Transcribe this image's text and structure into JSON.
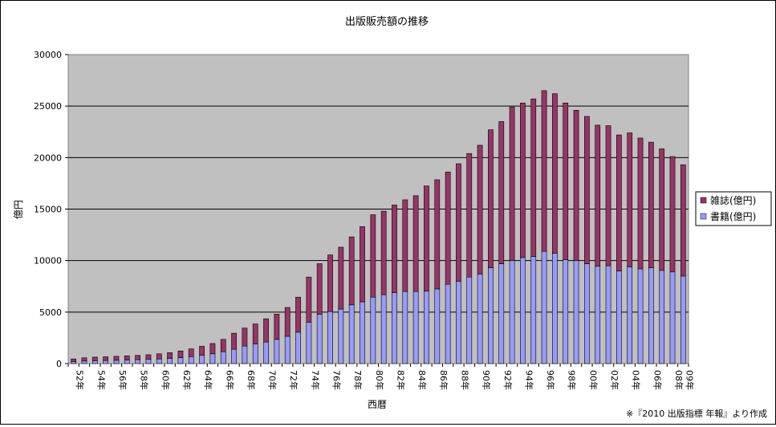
{
  "chart_data": {
    "type": "bar",
    "stacked": true,
    "title": "出版販売額の推移",
    "xlabel": "西暦",
    "ylabel": "億円",
    "ylim": [
      0,
      30000
    ],
    "yticks": [
      0,
      5000,
      10000,
      15000,
      20000,
      25000,
      30000
    ],
    "grid": true,
    "legend_position": "right",
    "categories": [
      "52年",
      "53年",
      "54年",
      "55年",
      "56年",
      "57年",
      "58年",
      "59年",
      "60年",
      "61年",
      "62年",
      "63年",
      "64年",
      "65年",
      "66年",
      "67年",
      "68年",
      "69年",
      "70年",
      "71年",
      "72年",
      "73年",
      "74年",
      "75年",
      "76年",
      "77年",
      "78年",
      "79年",
      "80年",
      "81年",
      "82年",
      "83年",
      "84年",
      "85年",
      "86年",
      "87年",
      "88年",
      "89年",
      "90年",
      "91年",
      "92年",
      "93年",
      "94年",
      "95年",
      "96年",
      "97年",
      "98年",
      "99年",
      "00年",
      "01年",
      "02年",
      "03年",
      "04年",
      "05年",
      "06年",
      "07年",
      "08年",
      "09年"
    ],
    "tick_label_every": 2,
    "series": [
      {
        "name": "書籍(億円)",
        "color": "#9999ff",
        "values": [
          200,
          250,
          280,
          300,
          320,
          350,
          380,
          410,
          450,
          500,
          580,
          680,
          800,
          950,
          1150,
          1400,
          1700,
          1900,
          2100,
          2350,
          2650,
          3050,
          4000,
          4800,
          5050,
          5300,
          5700,
          6000,
          6450,
          6700,
          6900,
          7000,
          7000,
          7050,
          7250,
          7700,
          8000,
          8400,
          8700,
          9300,
          9700,
          10000,
          10300,
          10400,
          10900,
          10700,
          10100,
          10000,
          9700,
          9450,
          9500,
          9000,
          9400,
          9200,
          9300,
          9050,
          8900,
          8500
        ]
      },
      {
        "name": "雑誌(億円)",
        "color": "#993366",
        "values": [
          250,
          310,
          350,
          360,
          390,
          400,
          420,
          450,
          500,
          560,
          650,
          750,
          880,
          1000,
          1200,
          1550,
          1750,
          1950,
          2250,
          2450,
          2800,
          3400,
          4400,
          4900,
          5500,
          6000,
          6600,
          7300,
          8000,
          8100,
          8500,
          8900,
          9300,
          10200,
          10600,
          10900,
          11400,
          12000,
          12500,
          13400,
          13800,
          14900,
          15000,
          15300,
          15600,
          15500,
          15200,
          14600,
          14300,
          13700,
          13600,
          13200,
          13000,
          12700,
          12200,
          11800,
          11200,
          10800
        ]
      }
    ]
  },
  "source_note": "※『2010 出版指標 年報』より作成"
}
